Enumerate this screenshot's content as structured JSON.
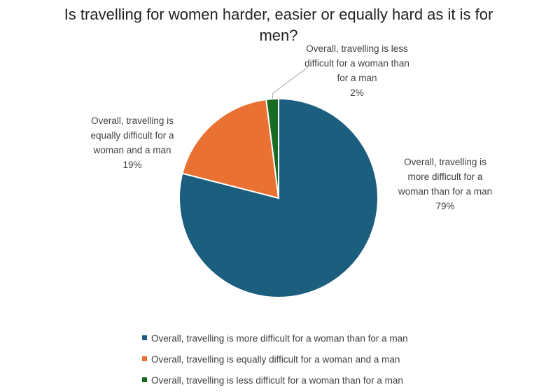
{
  "chart_data": {
    "type": "pie",
    "title": "Is travelling for women harder, easier or equally hard as it is for men?",
    "categories": [
      "Overall, travelling is more difficult for a woman than for a man",
      "Overall, travelling is equally difficult for a woman and a man",
      "Overall, travelling is less difficult for a woman than for a man"
    ],
    "values": [
      79,
      19,
      2
    ],
    "value_labels": [
      "79%",
      "19%",
      "2%"
    ],
    "colors": [
      "#1b5e7e",
      "#e97132",
      "#196b24"
    ],
    "legend": "bottom"
  }
}
